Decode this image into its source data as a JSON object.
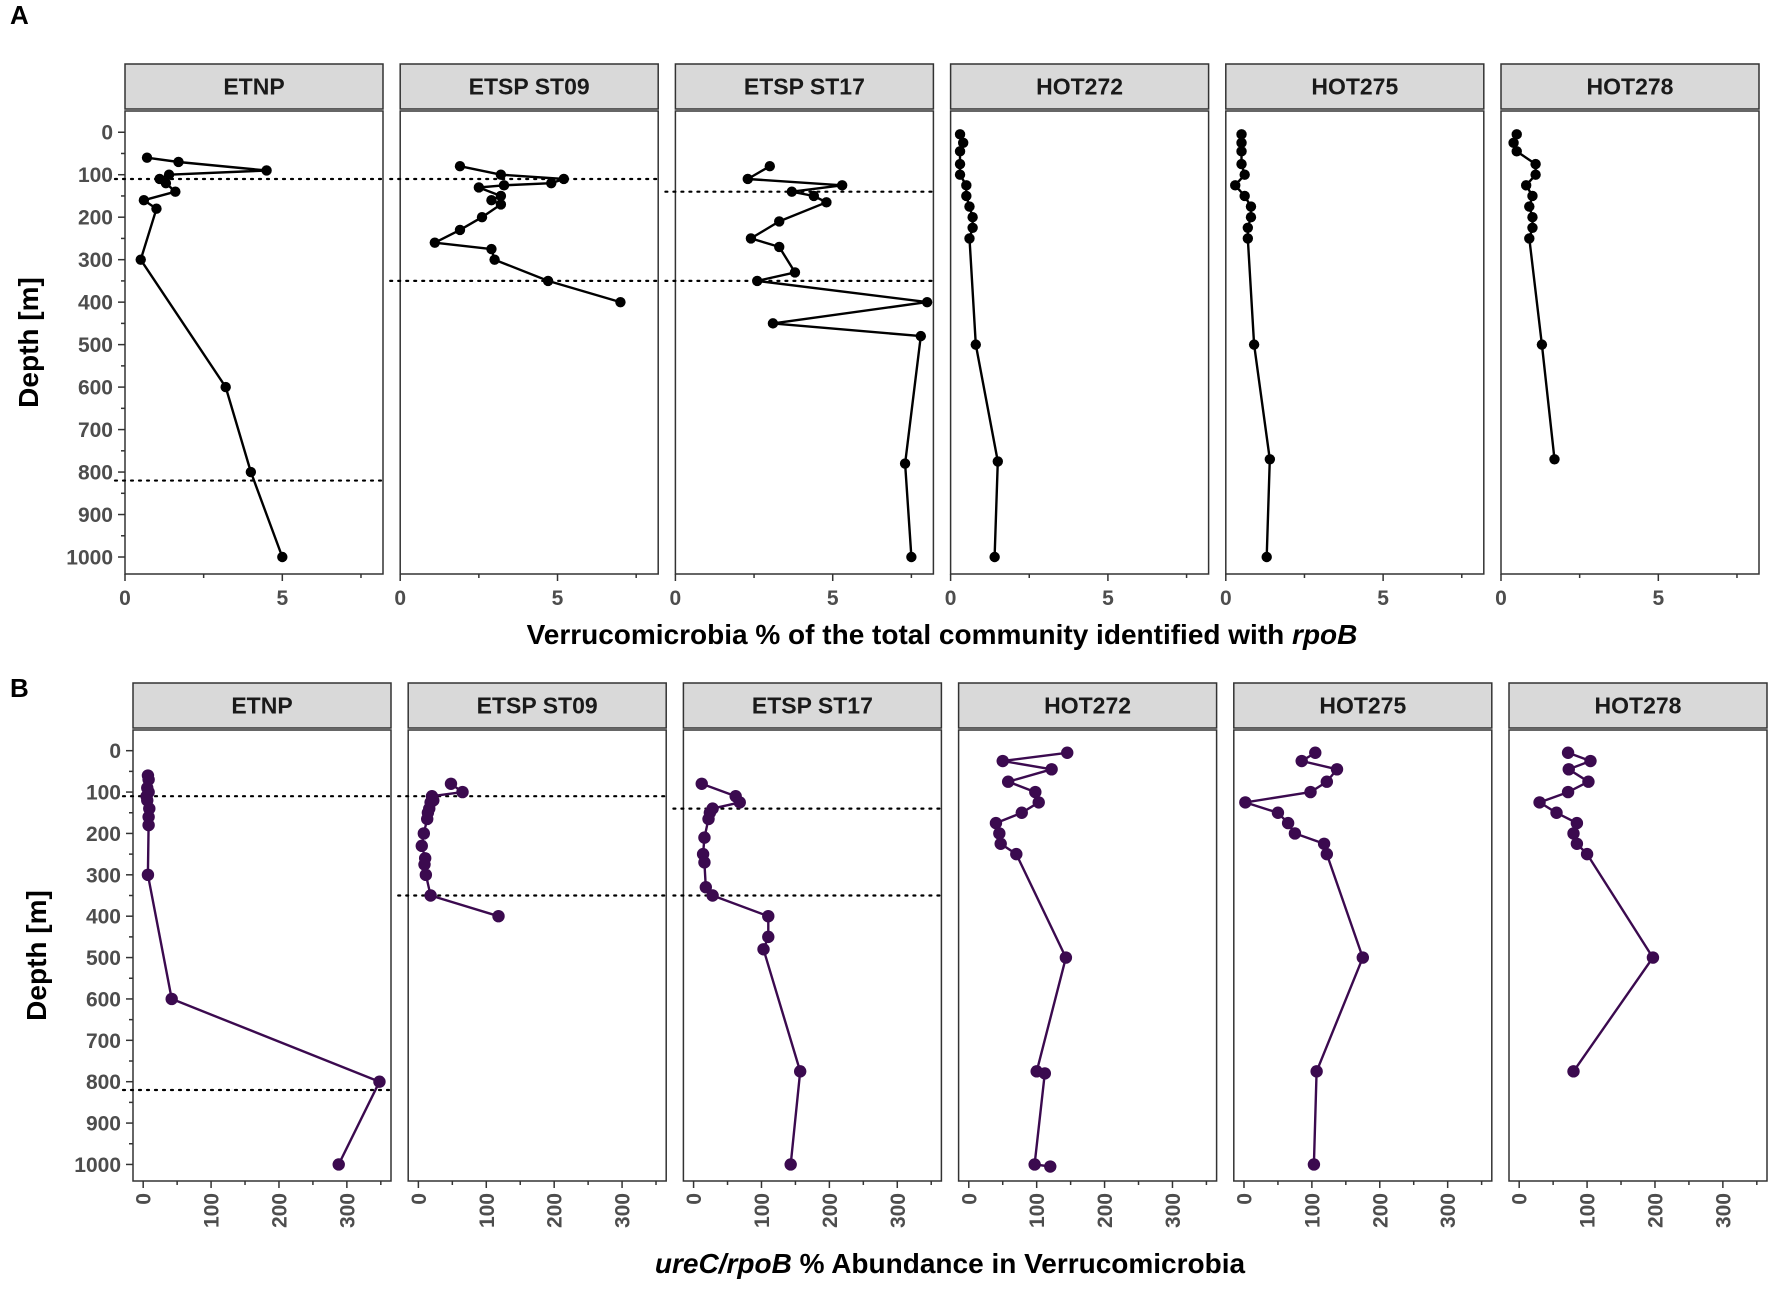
{
  "chart_data": [
    {
      "type": "line",
      "panel_label": "A",
      "xlabel": "Verrucomicrobia % of the total community identified with ",
      "xlabel_italic": "rpoB",
      "ylabel": "Depth [m]",
      "xlim": [
        0,
        8.2
      ],
      "ylim": [
        1040,
        -50
      ],
      "x_ticks": [
        0,
        5
      ],
      "y_ticks": [
        0,
        100,
        200,
        300,
        400,
        500,
        600,
        700,
        800,
        900,
        1000
      ],
      "color": "#000000",
      "facets": [
        {
          "name": "ETNP",
          "hlines": [
            110,
            820
          ],
          "points": [
            {
              "depth": 60,
              "value": 0.7
            },
            {
              "depth": 70,
              "value": 1.7
            },
            {
              "depth": 90,
              "value": 4.5
            },
            {
              "depth": 100,
              "value": 1.4
            },
            {
              "depth": 110,
              "value": 1.1
            },
            {
              "depth": 120,
              "value": 1.3
            },
            {
              "depth": 140,
              "value": 1.6
            },
            {
              "depth": 160,
              "value": 0.6
            },
            {
              "depth": 180,
              "value": 1.0
            },
            {
              "depth": 300,
              "value": 0.5
            },
            {
              "depth": 600,
              "value": 3.2
            },
            {
              "depth": 800,
              "value": 4.0
            },
            {
              "depth": 1000,
              "value": 5.0
            }
          ]
        },
        {
          "name": "ETSP ST09",
          "hlines": [
            110,
            350
          ],
          "points": [
            {
              "depth": 80,
              "value": 1.9
            },
            {
              "depth": 100,
              "value": 3.2
            },
            {
              "depth": 110,
              "value": 5.2
            },
            {
              "depth": 120,
              "value": 4.8
            },
            {
              "depth": 125,
              "value": 3.3
            },
            {
              "depth": 130,
              "value": 2.5
            },
            {
              "depth": 150,
              "value": 3.2
            },
            {
              "depth": 160,
              "value": 2.9
            },
            {
              "depth": 170,
              "value": 3.2
            },
            {
              "depth": 200,
              "value": 2.6
            },
            {
              "depth": 230,
              "value": 1.9
            },
            {
              "depth": 260,
              "value": 1.1
            },
            {
              "depth": 275,
              "value": 2.9
            },
            {
              "depth": 300,
              "value": 3.0
            },
            {
              "depth": 350,
              "value": 4.7
            },
            {
              "depth": 400,
              "value": 7.0
            }
          ]
        },
        {
          "name": "ETSP ST17",
          "hlines": [
            140,
            350
          ],
          "points": [
            {
              "depth": 80,
              "value": 3.0
            },
            {
              "depth": 110,
              "value": 2.3
            },
            {
              "depth": 125,
              "value": 5.3
            },
            {
              "depth": 140,
              "value": 3.7
            },
            {
              "depth": 150,
              "value": 4.4
            },
            {
              "depth": 165,
              "value": 4.8
            },
            {
              "depth": 210,
              "value": 3.3
            },
            {
              "depth": 250,
              "value": 2.4
            },
            {
              "depth": 270,
              "value": 3.3
            },
            {
              "depth": 330,
              "value": 3.8
            },
            {
              "depth": 350,
              "value": 2.6
            },
            {
              "depth": 400,
              "value": 8.0
            },
            {
              "depth": 450,
              "value": 3.1
            },
            {
              "depth": 480,
              "value": 7.8
            },
            {
              "depth": 780,
              "value": 7.3
            },
            {
              "depth": 1000,
              "value": 7.5
            }
          ]
        },
        {
          "name": "HOT272",
          "hlines": [],
          "points": [
            {
              "depth": 5,
              "value": 0.3
            },
            {
              "depth": 25,
              "value": 0.4
            },
            {
              "depth": 45,
              "value": 0.3
            },
            {
              "depth": 75,
              "value": 0.3
            },
            {
              "depth": 100,
              "value": 0.3
            },
            {
              "depth": 125,
              "value": 0.5
            },
            {
              "depth": 150,
              "value": 0.5
            },
            {
              "depth": 175,
              "value": 0.6
            },
            {
              "depth": 200,
              "value": 0.7
            },
            {
              "depth": 225,
              "value": 0.7
            },
            {
              "depth": 250,
              "value": 0.6
            },
            {
              "depth": 500,
              "value": 0.8
            },
            {
              "depth": 775,
              "value": 1.5
            },
            {
              "depth": 1000,
              "value": 1.4
            }
          ]
        },
        {
          "name": "HOT275",
          "hlines": [],
          "points": [
            {
              "depth": 5,
              "value": 0.5
            },
            {
              "depth": 25,
              "value": 0.5
            },
            {
              "depth": 45,
              "value": 0.5
            },
            {
              "depth": 75,
              "value": 0.5
            },
            {
              "depth": 100,
              "value": 0.6
            },
            {
              "depth": 125,
              "value": 0.3
            },
            {
              "depth": 150,
              "value": 0.6
            },
            {
              "depth": 175,
              "value": 0.8
            },
            {
              "depth": 200,
              "value": 0.8
            },
            {
              "depth": 225,
              "value": 0.7
            },
            {
              "depth": 250,
              "value": 0.7
            },
            {
              "depth": 500,
              "value": 0.9
            },
            {
              "depth": 770,
              "value": 1.4
            },
            {
              "depth": 1000,
              "value": 1.3
            }
          ]
        },
        {
          "name": "HOT278",
          "hlines": [],
          "points": [
            {
              "depth": 5,
              "value": 0.5
            },
            {
              "depth": 25,
              "value": 0.4
            },
            {
              "depth": 45,
              "value": 0.5
            },
            {
              "depth": 75,
              "value": 1.1
            },
            {
              "depth": 100,
              "value": 1.1
            },
            {
              "depth": 125,
              "value": 0.8
            },
            {
              "depth": 150,
              "value": 1.0
            },
            {
              "depth": 175,
              "value": 0.9
            },
            {
              "depth": 200,
              "value": 1.0
            },
            {
              "depth": 225,
              "value": 1.0
            },
            {
              "depth": 250,
              "value": 0.9
            },
            {
              "depth": 500,
              "value": 1.3
            },
            {
              "depth": 770,
              "value": 1.7
            }
          ]
        }
      ]
    },
    {
      "type": "line",
      "panel_label": "B",
      "xlabel_italic": "ureC/rpoB",
      "xlabel": " % Abundance in Verrucomicrobia",
      "ylabel": "Depth [m]",
      "xlim": [
        -15,
        365
      ],
      "ylim": [
        1040,
        -50
      ],
      "x_ticks": [
        0,
        100,
        200,
        300
      ],
      "y_ticks": [
        0,
        100,
        200,
        300,
        400,
        500,
        600,
        700,
        800,
        900,
        1000
      ],
      "color": "#3b0a4f",
      "facets": [
        {
          "name": "ETNP",
          "hlines": [
            110,
            820
          ],
          "points": [
            {
              "depth": 60,
              "value": 7
            },
            {
              "depth": 70,
              "value": 8
            },
            {
              "depth": 90,
              "value": 6
            },
            {
              "depth": 100,
              "value": 8
            },
            {
              "depth": 110,
              "value": 5
            },
            {
              "depth": 120,
              "value": 6
            },
            {
              "depth": 140,
              "value": 9
            },
            {
              "depth": 160,
              "value": 8
            },
            {
              "depth": 180,
              "value": 8
            },
            {
              "depth": 300,
              "value": 7
            },
            {
              "depth": 600,
              "value": 42
            },
            {
              "depth": 800,
              "value": 348
            },
            {
              "depth": 1000,
              "value": 288
            }
          ]
        },
        {
          "name": "ETSP ST09",
          "hlines": [
            110,
            350
          ],
          "points": [
            {
              "depth": 80,
              "value": 48
            },
            {
              "depth": 100,
              "value": 65
            },
            {
              "depth": 110,
              "value": 20
            },
            {
              "depth": 120,
              "value": 22
            },
            {
              "depth": 125,
              "value": 18
            },
            {
              "depth": 140,
              "value": 16
            },
            {
              "depth": 150,
              "value": 14
            },
            {
              "depth": 165,
              "value": 13
            },
            {
              "depth": 200,
              "value": 8
            },
            {
              "depth": 230,
              "value": 5
            },
            {
              "depth": 260,
              "value": 10
            },
            {
              "depth": 275,
              "value": 9
            },
            {
              "depth": 300,
              "value": 11
            },
            {
              "depth": 350,
              "value": 18
            },
            {
              "depth": 400,
              "value": 118
            }
          ]
        },
        {
          "name": "ETSP ST17",
          "hlines": [
            140,
            350
          ],
          "points": [
            {
              "depth": 80,
              "value": 12
            },
            {
              "depth": 110,
              "value": 62
            },
            {
              "depth": 125,
              "value": 68
            },
            {
              "depth": 140,
              "value": 28
            },
            {
              "depth": 150,
              "value": 24
            },
            {
              "depth": 165,
              "value": 22
            },
            {
              "depth": 210,
              "value": 16
            },
            {
              "depth": 250,
              "value": 14
            },
            {
              "depth": 270,
              "value": 16
            },
            {
              "depth": 330,
              "value": 18
            },
            {
              "depth": 350,
              "value": 28
            },
            {
              "depth": 400,
              "value": 110
            },
            {
              "depth": 450,
              "value": 110
            },
            {
              "depth": 480,
              "value": 103
            },
            {
              "depth": 775,
              "value": 157
            },
            {
              "depth": 1000,
              "value": 143
            }
          ]
        },
        {
          "name": "HOT272",
          "hlines": [],
          "points": [
            {
              "depth": 5,
              "value": 145
            },
            {
              "depth": 25,
              "value": 50
            },
            {
              "depth": 45,
              "value": 122
            },
            {
              "depth": 75,
              "value": 58
            },
            {
              "depth": 100,
              "value": 98
            },
            {
              "depth": 125,
              "value": 103
            },
            {
              "depth": 150,
              "value": 78
            },
            {
              "depth": 175,
              "value": 40
            },
            {
              "depth": 200,
              "value": 45
            },
            {
              "depth": 225,
              "value": 47
            },
            {
              "depth": 250,
              "value": 70
            },
            {
              "depth": 500,
              "value": 143
            },
            {
              "depth": 775,
              "value": 100
            },
            {
              "depth": 780,
              "value": 112
            },
            {
              "depth": 1000,
              "value": 97
            },
            {
              "depth": 1005,
              "value": 120
            }
          ]
        },
        {
          "name": "HOT275",
          "hlines": [],
          "points": [
            {
              "depth": 5,
              "value": 105
            },
            {
              "depth": 25,
              "value": 85
            },
            {
              "depth": 45,
              "value": 137
            },
            {
              "depth": 75,
              "value": 122
            },
            {
              "depth": 100,
              "value": 98
            },
            {
              "depth": 125,
              "value": 2
            },
            {
              "depth": 150,
              "value": 50
            },
            {
              "depth": 175,
              "value": 65
            },
            {
              "depth": 200,
              "value": 75
            },
            {
              "depth": 225,
              "value": 118
            },
            {
              "depth": 250,
              "value": 122
            },
            {
              "depth": 500,
              "value": 175
            },
            {
              "depth": 775,
              "value": 107
            },
            {
              "depth": 1000,
              "value": 103
            }
          ]
        },
        {
          "name": "HOT278",
          "hlines": [],
          "points": [
            {
              "depth": 5,
              "value": 72
            },
            {
              "depth": 25,
              "value": 105
            },
            {
              "depth": 45,
              "value": 73
            },
            {
              "depth": 75,
              "value": 102
            },
            {
              "depth": 100,
              "value": 72
            },
            {
              "depth": 125,
              "value": 30
            },
            {
              "depth": 150,
              "value": 55
            },
            {
              "depth": 175,
              "value": 85
            },
            {
              "depth": 200,
              "value": 80
            },
            {
              "depth": 225,
              "value": 85
            },
            {
              "depth": 250,
              "value": 100
            },
            {
              "depth": 500,
              "value": 197
            },
            {
              "depth": 775,
              "value": 80
            }
          ]
        }
      ]
    }
  ]
}
